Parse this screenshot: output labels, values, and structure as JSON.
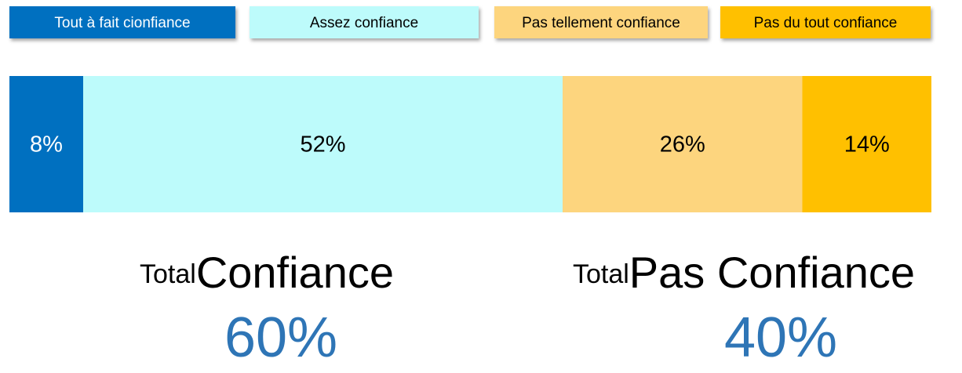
{
  "chart_data": {
    "type": "bar",
    "orientation": "horizontal",
    "stacked": true,
    "categories": [
      null
    ],
    "xlim": [
      0,
      100
    ],
    "series": [
      {
        "name": "Tout à fait cionfiance",
        "color": "#0070c0",
        "values": [
          8
        ],
        "value_labels": [
          "8%"
        ]
      },
      {
        "name": "Assez confiance",
        "color": "#bdfbfb",
        "values": [
          52
        ],
        "value_labels": [
          "52%"
        ]
      },
      {
        "name": "Pas tellement confiance",
        "color": "#fdd57e",
        "values": [
          26
        ],
        "value_labels": [
          "26%"
        ]
      },
      {
        "name": "Pas du tout confiance",
        "color": "#ffc000",
        "values": [
          14
        ],
        "value_labels": [
          "14%"
        ]
      }
    ],
    "annotations": [
      {
        "prefix": "Total",
        "label": "Confiance",
        "value": 60,
        "value_label": "60%"
      },
      {
        "prefix": "Total",
        "label": "Pas Confiance",
        "value": 40,
        "value_label": "40%"
      }
    ]
  }
}
